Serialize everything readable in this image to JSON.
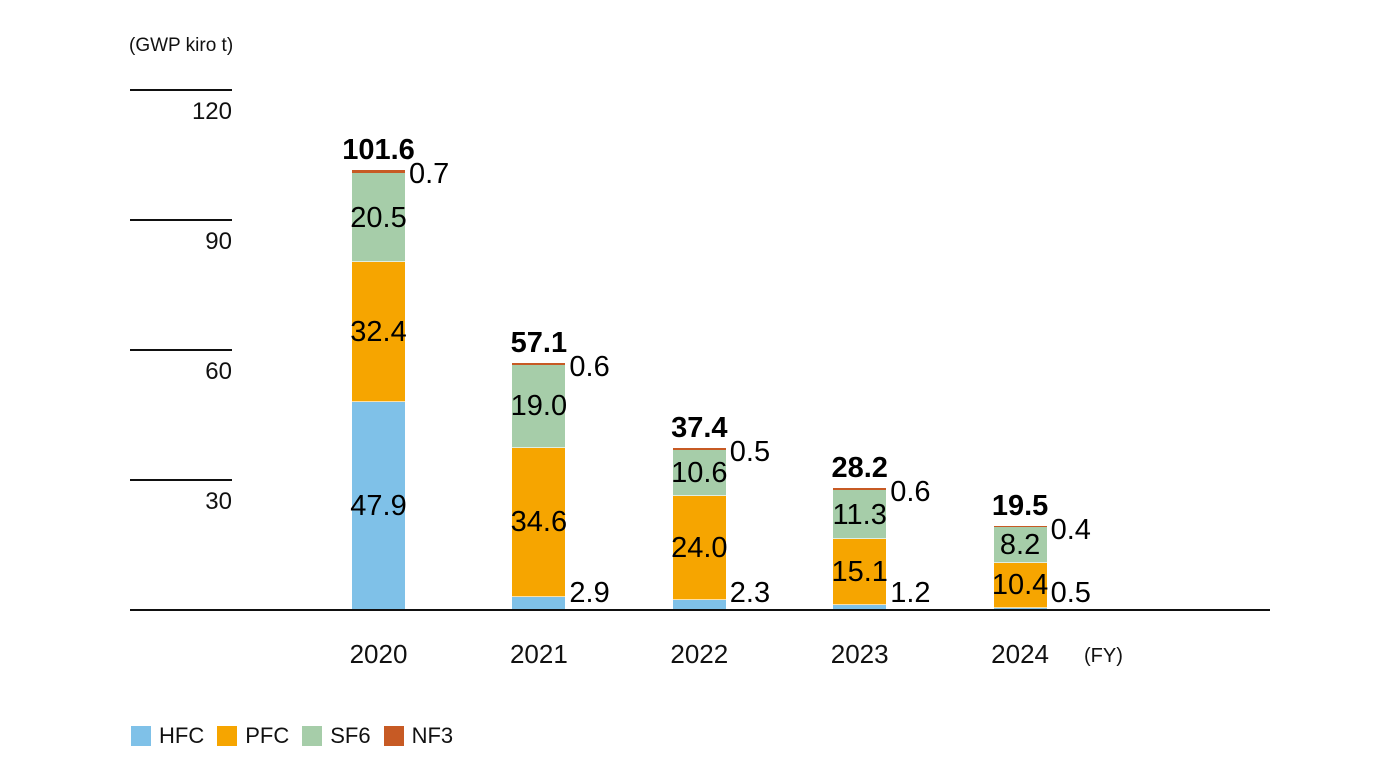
{
  "unit_label": "(GWP kiro t)",
  "fy_label": "(FY)",
  "legend": {
    "items": [
      {
        "label": "HFC",
        "color": "#7fc1e8"
      },
      {
        "label": "PFC",
        "color": "#f6a500"
      },
      {
        "label": "SF6",
        "color": "#a6cda9"
      },
      {
        "label": "NF3",
        "color": "#c75a24"
      }
    ]
  },
  "chart_data": {
    "type": "bar",
    "stacked": true,
    "title": "",
    "ylabel": "(GWP kiro t)",
    "xlabel": "(FY)",
    "categories": [
      "2020",
      "2021",
      "2022",
      "2023",
      "2024"
    ],
    "series": [
      {
        "name": "HFC",
        "color": "#7fc1e8",
        "values": [
          47.9,
          2.9,
          2.3,
          1.2,
          0.5
        ]
      },
      {
        "name": "PFC",
        "color": "#f6a500",
        "values": [
          32.4,
          34.6,
          24.0,
          15.1,
          10.4
        ]
      },
      {
        "name": "SF6",
        "color": "#a6cda9",
        "values": [
          20.5,
          19.0,
          10.6,
          11.3,
          8.2
        ]
      },
      {
        "name": "NF3",
        "color": "#c75a24",
        "values": [
          0.7,
          0.6,
          0.5,
          0.6,
          0.4
        ]
      }
    ],
    "totals": [
      101.6,
      57.1,
      37.4,
      28.2,
      19.5
    ],
    "yticks": [
      30,
      60,
      90,
      120
    ],
    "ylim": [
      0,
      130
    ],
    "grid": false,
    "legend_position": "bottom-left"
  }
}
